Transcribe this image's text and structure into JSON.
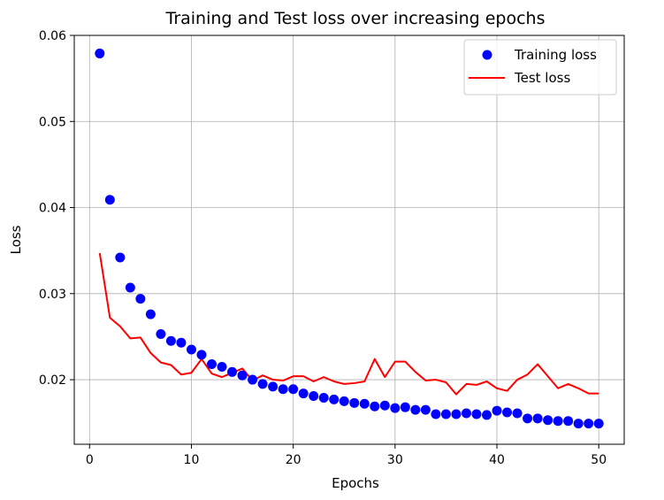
{
  "chart_data": {
    "type": "line",
    "title": "Training and Test loss over increasing epochs",
    "xlabel": "Epochs",
    "ylabel": "Loss",
    "xlim": [
      -1.5,
      52.5
    ],
    "ylim": [
      0.0125,
      0.06
    ],
    "x_ticks": [
      0,
      10,
      20,
      30,
      40,
      50
    ],
    "y_ticks": [
      0.02,
      0.03,
      0.04,
      0.05,
      0.06
    ],
    "x_tick_labels": [
      "0",
      "10",
      "20",
      "30",
      "40",
      "50"
    ],
    "y_tick_labels": [
      "0.02",
      "0.03",
      "0.04",
      "0.05",
      "0.06"
    ],
    "grid": true,
    "legend_position": "top-right",
    "x": [
      1,
      2,
      3,
      4,
      5,
      6,
      7,
      8,
      9,
      10,
      11,
      12,
      13,
      14,
      15,
      16,
      17,
      18,
      19,
      20,
      21,
      22,
      23,
      24,
      25,
      26,
      27,
      28,
      29,
      30,
      31,
      32,
      33,
      34,
      35,
      36,
      37,
      38,
      39,
      40,
      41,
      42,
      43,
      44,
      45,
      46,
      47,
      48,
      49,
      50
    ],
    "series": [
      {
        "name": "Training loss",
        "style": "markers",
        "color": "#0000ff",
        "values": [
          0.0579,
          0.0409,
          0.0342,
          0.0307,
          0.0294,
          0.0276,
          0.0253,
          0.0245,
          0.0243,
          0.0235,
          0.0229,
          0.0218,
          0.0215,
          0.0209,
          0.0205,
          0.02,
          0.0195,
          0.0192,
          0.0189,
          0.0189,
          0.0184,
          0.0181,
          0.0179,
          0.0177,
          0.0175,
          0.0173,
          0.0172,
          0.0169,
          0.017,
          0.0167,
          0.0168,
          0.0165,
          0.0165,
          0.016,
          0.016,
          0.016,
          0.0161,
          0.016,
          0.0159,
          0.0164,
          0.0162,
          0.0161,
          0.0155,
          0.0155,
          0.0153,
          0.0152,
          0.0152,
          0.0149,
          0.0149,
          0.0149
        ]
      },
      {
        "name": "Test loss",
        "style": "line",
        "color": "#ff0000",
        "values": [
          0.0347,
          0.0272,
          0.0262,
          0.0248,
          0.0249,
          0.0231,
          0.022,
          0.0217,
          0.0206,
          0.0208,
          0.0224,
          0.0207,
          0.0203,
          0.0208,
          0.0213,
          0.0199,
          0.0205,
          0.02,
          0.0199,
          0.0204,
          0.0204,
          0.0198,
          0.0203,
          0.0198,
          0.0195,
          0.0196,
          0.0198,
          0.0224,
          0.0203,
          0.0221,
          0.0221,
          0.0209,
          0.0199,
          0.02,
          0.0197,
          0.0183,
          0.0195,
          0.0194,
          0.0198,
          0.019,
          0.0187,
          0.02,
          0.0206,
          0.0218,
          0.0204,
          0.019,
          0.0195,
          0.019,
          0.0184,
          0.0184
        ]
      }
    ]
  }
}
